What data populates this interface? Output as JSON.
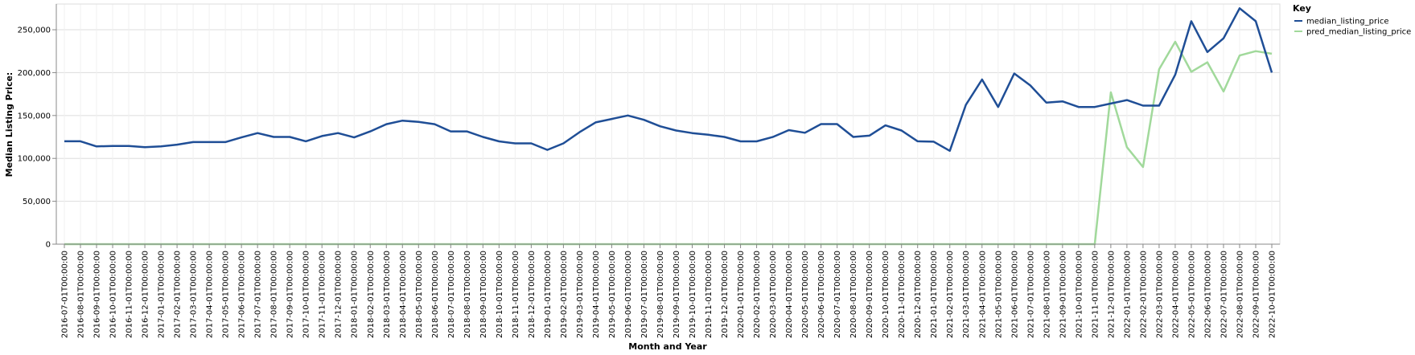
{
  "chart_data": {
    "type": "line",
    "title": "",
    "xlabel": "Month and Year",
    "ylabel": "Median Listing Price:",
    "ylim": [
      0,
      280000
    ],
    "yticks": [
      0,
      50000,
      100000,
      150000,
      200000,
      250000
    ],
    "ytick_labels": [
      "0",
      "50,000",
      "100,000",
      "150,000",
      "200,000",
      "250,000"
    ],
    "grid": true,
    "legend": {
      "title": "Key",
      "position": "top-right"
    },
    "x": [
      "2016-07-01T00:00:00",
      "2016-08-01T00:00:00",
      "2016-09-01T00:00:00",
      "2016-10-01T00:00:00",
      "2016-11-01T00:00:00",
      "2016-12-01T00:00:00",
      "2017-01-01T00:00:00",
      "2017-02-01T00:00:00",
      "2017-03-01T00:00:00",
      "2017-04-01T00:00:00",
      "2017-05-01T00:00:00",
      "2017-06-01T00:00:00",
      "2017-07-01T00:00:00",
      "2017-08-01T00:00:00",
      "2017-09-01T00:00:00",
      "2017-10-01T00:00:00",
      "2017-11-01T00:00:00",
      "2017-12-01T00:00:00",
      "2018-01-01T00:00:00",
      "2018-02-01T00:00:00",
      "2018-03-01T00:00:00",
      "2018-04-01T00:00:00",
      "2018-05-01T00:00:00",
      "2018-06-01T00:00:00",
      "2018-07-01T00:00:00",
      "2018-08-01T00:00:00",
      "2018-09-01T00:00:00",
      "2018-10-01T00:00:00",
      "2018-11-01T00:00:00",
      "2018-12-01T00:00:00",
      "2019-01-01T00:00:00",
      "2019-02-01T00:00:00",
      "2019-03-01T00:00:00",
      "2019-04-01T00:00:00",
      "2019-05-01T00:00:00",
      "2019-06-01T00:00:00",
      "2019-07-01T00:00:00",
      "2019-08-01T00:00:00",
      "2019-09-01T00:00:00",
      "2019-10-01T00:00:00",
      "2019-11-01T00:00:00",
      "2019-12-01T00:00:00",
      "2020-01-01T00:00:00",
      "2020-02-01T00:00:00",
      "2020-03-01T00:00:00",
      "2020-04-01T00:00:00",
      "2020-05-01T00:00:00",
      "2020-06-01T00:00:00",
      "2020-07-01T00:00:00",
      "2020-08-01T00:00:00",
      "2020-09-01T00:00:00",
      "2020-10-01T00:00:00",
      "2020-11-01T00:00:00",
      "2020-12-01T00:00:00",
      "2021-01-01T00:00:00",
      "2021-02-01T00:00:00",
      "2021-03-01T00:00:00",
      "2021-04-01T00:00:00",
      "2021-05-01T00:00:00",
      "2021-06-01T00:00:00",
      "2021-07-01T00:00:00",
      "2021-08-01T00:00:00",
      "2021-09-01T00:00:00",
      "2021-10-01T00:00:00",
      "2021-11-01T00:00:00",
      "2021-12-01T00:00:00",
      "2022-01-01T00:00:00",
      "2022-02-01T00:00:00",
      "2022-03-01T00:00:00",
      "2022-04-01T00:00:00",
      "2022-05-01T00:00:00",
      "2022-06-01T00:00:00",
      "2022-07-01T00:00:00",
      "2022-08-01T00:00:00",
      "2022-09-01T00:00:00",
      "2022-10-01T00:00:00"
    ],
    "series": [
      {
        "name": "median_listing_price",
        "color": "#1f4e96",
        "values": [
          120000,
          120000,
          114000,
          114500,
          114500,
          113000,
          114000,
          116000,
          119000,
          119000,
          119000,
          124500,
          129500,
          125000,
          125000,
          120000,
          126000,
          129500,
          124500,
          131500,
          139900,
          144000,
          142500,
          139900,
          131500,
          131500,
          125000,
          119900,
          117500,
          117500,
          109900,
          117500,
          130500,
          142000,
          146000,
          150000,
          145000,
          137500,
          132500,
          129500,
          127500,
          125000,
          119900,
          119900,
          124900,
          133000,
          129900,
          140000,
          140000,
          125000,
          126500,
          138500,
          132500,
          120000,
          119500,
          108800,
          162500,
          192000,
          159900,
          199000,
          185000,
          165000,
          166500,
          159900,
          159900,
          164000,
          168000,
          161500,
          161500,
          197500,
          260000,
          224000,
          240000,
          275000,
          260000,
          200000
        ]
      },
      {
        "name": "pred_median_listing_price",
        "color": "#a1d99b",
        "values": [
          0,
          0,
          0,
          0,
          0,
          0,
          0,
          0,
          0,
          0,
          0,
          0,
          0,
          0,
          0,
          0,
          0,
          0,
          0,
          0,
          0,
          0,
          0,
          0,
          0,
          0,
          0,
          0,
          0,
          0,
          0,
          0,
          0,
          0,
          0,
          0,
          0,
          0,
          0,
          0,
          0,
          0,
          0,
          0,
          0,
          0,
          0,
          0,
          0,
          0,
          0,
          0,
          0,
          0,
          0,
          0,
          0,
          0,
          0,
          0,
          0,
          0,
          0,
          0,
          0,
          177000,
          113000,
          90000,
          204000,
          236000,
          201000,
          212000,
          178000,
          220000,
          225000,
          222000
        ]
      }
    ]
  }
}
